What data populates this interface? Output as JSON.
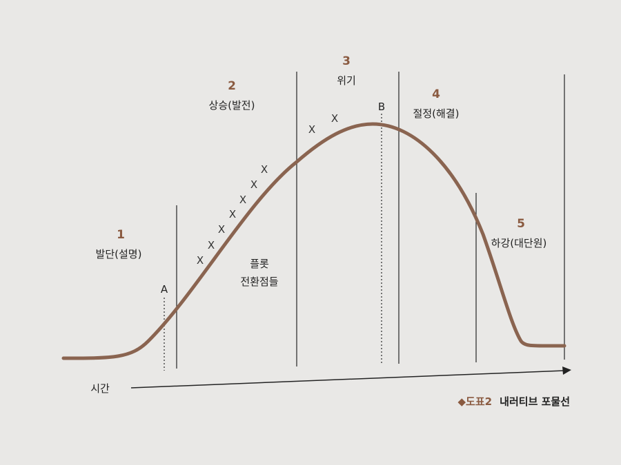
{
  "stages": [
    {
      "number": "1",
      "label": "발단(설명)"
    },
    {
      "number": "2",
      "label": "상승(발전)"
    },
    {
      "number": "3",
      "label": "위기"
    },
    {
      "number": "4",
      "label": "절정(해결)"
    },
    {
      "number": "5",
      "label": "하강(대단원)"
    }
  ],
  "turning_points": {
    "line1": "플롯",
    "line2": "전환점들"
  },
  "markers": {
    "a": "A",
    "b": "B",
    "x": "X"
  },
  "axis_label": "시간",
  "caption": {
    "prefix": "◆도표2",
    "title": "내러티브 포물선"
  },
  "colors": {
    "curve": "#8a6450",
    "number": "#8a5a40",
    "line": "#333333",
    "background": "#e9e8e6"
  }
}
